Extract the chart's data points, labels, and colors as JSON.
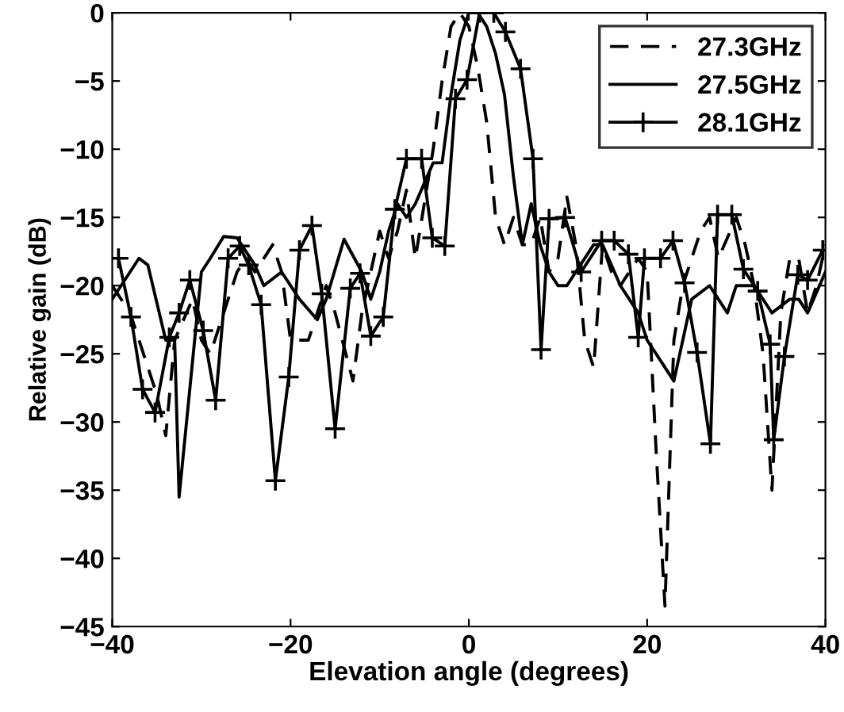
{
  "chart_data": {
    "type": "line",
    "xlabel": "Elevation angle (degrees)",
    "ylabel": "Relative gain (dB)",
    "xlim": [
      -40,
      40
    ],
    "ylim": [
      -45,
      0
    ],
    "xticks": [
      -40,
      -20,
      0,
      20,
      40
    ],
    "yticks": [
      -45,
      -40,
      -35,
      -30,
      -25,
      -20,
      -15,
      -10,
      -5,
      0
    ],
    "grid": false,
    "legend": "top right",
    "series": [
      {
        "name": "27.3GHz",
        "color": "#000000",
        "line_style": "dashed",
        "marker": "none",
        "x": [
          -40,
          -38,
          -36,
          -35,
          -34,
          -33,
          -31,
          -30,
          -29,
          -26,
          -25,
          -24,
          -22,
          -21,
          -20,
          -18,
          -16,
          -15,
          -13,
          -12,
          -10,
          -9,
          -8,
          -7,
          -6,
          -4,
          -3,
          -2,
          -1,
          0,
          1,
          2,
          3,
          4,
          5,
          6,
          7,
          8,
          9,
          10,
          11,
          12,
          13,
          14,
          15,
          16,
          17,
          18,
          19,
          20,
          21,
          22,
          23,
          24,
          25,
          26,
          27,
          28,
          30,
          31,
          32,
          33,
          34,
          35,
          36,
          37,
          38,
          39,
          40
        ],
        "values": [
          -20,
          -22,
          -26,
          -28,
          -31,
          -24,
          -21,
          -24,
          -25,
          -19,
          -18,
          -19,
          -17,
          -19,
          -24,
          -24,
          -20,
          -22,
          -27,
          -22,
          -16,
          -18,
          -16,
          -13,
          -18,
          -10,
          -5,
          -1,
          0,
          -1,
          -4,
          -8,
          -15,
          -17,
          -15,
          -17,
          -17,
          -15,
          -19,
          -18,
          -13.5,
          -17,
          -24,
          -26,
          -17,
          -19,
          -20,
          -19,
          -18,
          -19,
          -32,
          -43.5,
          -24,
          -20,
          -18,
          -16,
          -15,
          -18,
          -15,
          -17,
          -20,
          -25,
          -35,
          -22,
          -18,
          -18,
          -22,
          -20,
          -17
        ]
      },
      {
        "name": "27.5GHz",
        "color": "#000000",
        "line_style": "solid",
        "marker": "none",
        "x": [
          -40,
          -38,
          -37,
          -36,
          -34,
          -33,
          -32.5,
          -30,
          -29,
          -27.5,
          -26,
          -24,
          -23,
          -21,
          -19,
          -17,
          -16,
          -14,
          -12,
          -11,
          -10,
          -9,
          -8,
          -7,
          -6,
          -4,
          -3,
          -2,
          -1,
          0,
          1,
          2,
          3,
          4,
          5,
          6,
          7,
          8,
          9,
          10,
          11,
          12,
          14,
          15,
          17,
          19,
          20,
          22,
          23,
          25,
          27,
          29,
          30,
          32,
          34,
          36,
          37,
          38,
          40
        ],
        "values": [
          -21,
          -19,
          -18,
          -18.5,
          -24,
          -24,
          -35.5,
          -19,
          -18,
          -16.4,
          -16.5,
          -18.5,
          -20,
          -19,
          -21,
          -22.5,
          -21,
          -16.6,
          -19,
          -21,
          -19,
          -16,
          -14,
          -15,
          -14,
          -11,
          -11,
          -6,
          -2,
          0,
          0,
          -1,
          -3,
          -6,
          -12,
          -17,
          -14,
          -17,
          -19,
          -20,
          -20,
          -19,
          -17,
          -17,
          -20,
          -22,
          -24,
          -26,
          -27,
          -21,
          -20,
          -22,
          -20,
          -20,
          -22,
          -21,
          -21,
          -22,
          -19
        ]
      },
      {
        "name": "28.1GHz",
        "color": "#000000",
        "line_style": "solid",
        "marker": "cross",
        "x": [
          -39.3,
          -37.9,
          -36.6,
          -35.2,
          -33.6,
          -32.5,
          -31.3,
          -29.8,
          -28.4,
          -27,
          -25.7,
          -24.7,
          -23.3,
          -21.7,
          -20.2,
          -19,
          -17.6,
          -16.5,
          -15,
          -13.3,
          -12.2,
          -11,
          -9.6,
          -8.3,
          -7,
          -5.3,
          -4.1,
          -2.7,
          -1.5,
          -0.2,
          1.2,
          2.8,
          4.1,
          5.8,
          7.2,
          8.1,
          9,
          10.8,
          12.6,
          14.9,
          16.3,
          17.9,
          19,
          19.7,
          21.5,
          22.9,
          24.2,
          25.6,
          27.1,
          27.9,
          29.5,
          30.8,
          32.4,
          33.8,
          34.2,
          35.4,
          36.9,
          38,
          39.7
        ],
        "values": [
          -18,
          -22.3,
          -27.6,
          -29.3,
          -23.8,
          -22,
          -19.6,
          -23.3,
          -28.4,
          -18,
          -17.1,
          -18.5,
          -21.4,
          -34.3,
          -26.7,
          -17.4,
          -15.6,
          -20.6,
          -30.5,
          -20.2,
          -19.1,
          -23.7,
          -22.3,
          -14.4,
          -10.7,
          -10.7,
          -16.5,
          -17.1,
          -6.3,
          -4.9,
          0,
          0,
          -1.4,
          -4.1,
          -10.7,
          -24.7,
          -15.1,
          -15,
          -19,
          -16.7,
          -16.7,
          -17.7,
          -23.8,
          -18,
          -18,
          -16.7,
          -19.8,
          -24.9,
          -31.6,
          -14.8,
          -14.8,
          -18.8,
          -20.4,
          -24.3,
          -31.3,
          -25.2,
          -19.2,
          -19.6,
          -17.4
        ]
      }
    ]
  }
}
